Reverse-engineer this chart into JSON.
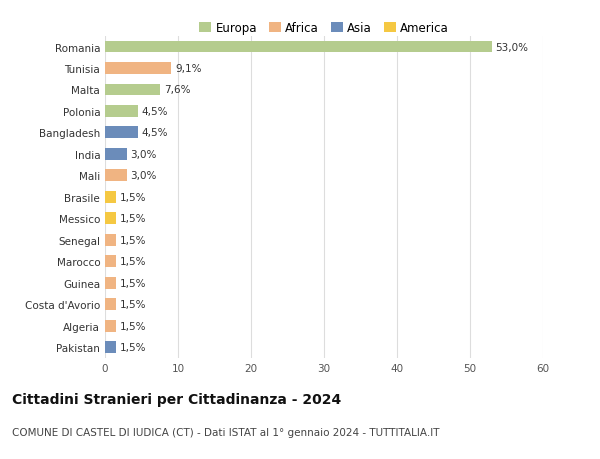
{
  "categories": [
    "Romania",
    "Tunisia",
    "Malta",
    "Polonia",
    "Bangladesh",
    "India",
    "Mali",
    "Brasile",
    "Messico",
    "Senegal",
    "Marocco",
    "Guinea",
    "Costa d'Avorio",
    "Algeria",
    "Pakistan"
  ],
  "values": [
    53.0,
    9.1,
    7.6,
    4.5,
    4.5,
    3.0,
    3.0,
    1.5,
    1.5,
    1.5,
    1.5,
    1.5,
    1.5,
    1.5,
    1.5
  ],
  "labels": [
    "53,0%",
    "9,1%",
    "7,6%",
    "4,5%",
    "4,5%",
    "3,0%",
    "3,0%",
    "1,5%",
    "1,5%",
    "1,5%",
    "1,5%",
    "1,5%",
    "1,5%",
    "1,5%",
    "1,5%"
  ],
  "colors": [
    "#b5cc8e",
    "#f0b482",
    "#b5cc8e",
    "#b5cc8e",
    "#6b8cba",
    "#6b8cba",
    "#f0b482",
    "#f5c842",
    "#f5c842",
    "#f0b482",
    "#f0b482",
    "#f0b482",
    "#f0b482",
    "#f0b482",
    "#6b8cba"
  ],
  "legend_labels": [
    "Europa",
    "Africa",
    "Asia",
    "America"
  ],
  "legend_colors": [
    "#b5cc8e",
    "#f0b482",
    "#6b8cba",
    "#f5c842"
  ],
  "xlim": [
    0,
    60
  ],
  "xticks": [
    0,
    10,
    20,
    30,
    40,
    50,
    60
  ],
  "title": "Cittadini Stranieri per Cittadinanza - 2024",
  "subtitle": "COMUNE DI CASTEL DI IUDICA (CT) - Dati ISTAT al 1° gennaio 2024 - TUTTITALIA.IT",
  "bg_color": "#ffffff",
  "grid_color": "#dddddd",
  "bar_height": 0.55,
  "title_fontsize": 10,
  "subtitle_fontsize": 7.5,
  "label_fontsize": 7.5,
  "tick_fontsize": 7.5,
  "legend_fontsize": 8.5
}
